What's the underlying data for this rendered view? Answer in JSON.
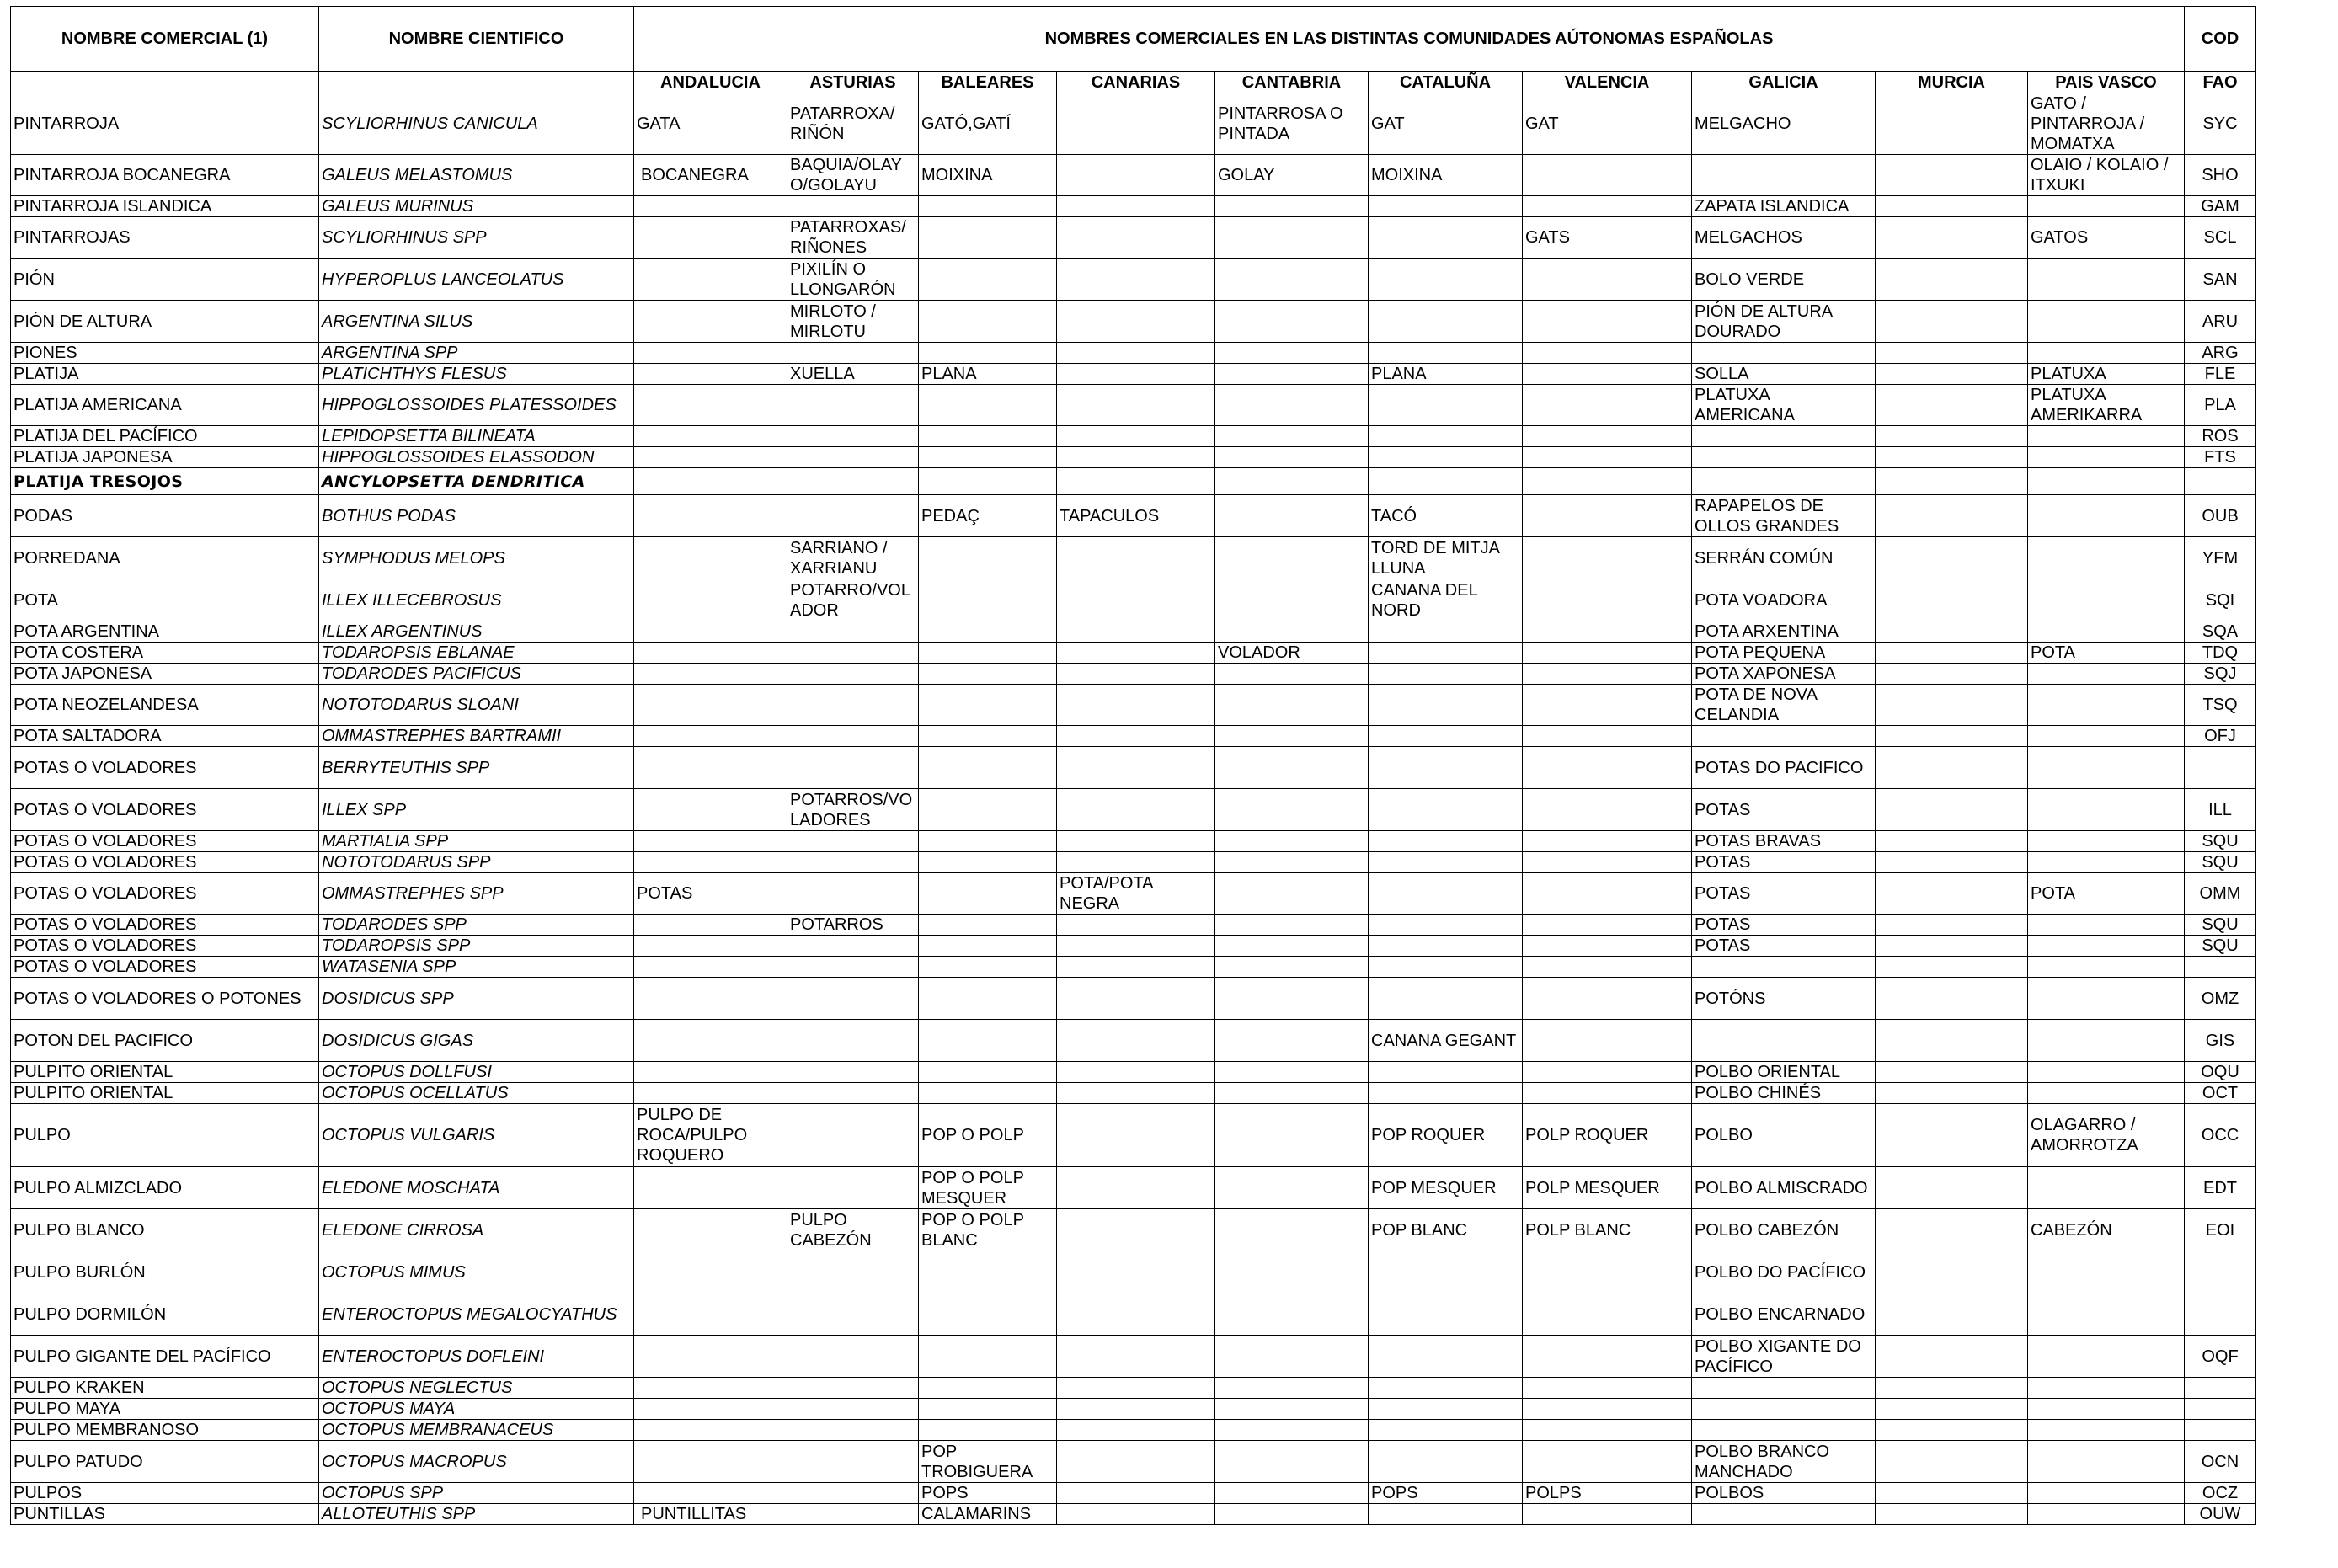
{
  "header": {
    "commercial_name": "NOMBRE COMERCIAL (1)",
    "scientific_name": "NOMBRE CIENTIFICO",
    "regions_title": "NOMBRES COMERCIALES EN LAS DISTINTAS COMUNIDADES AÚTONOMAS ESPAÑOLAS",
    "cod": "COD",
    "fao": "FAO",
    "regions": [
      "ANDALUCIA",
      "ASTURIAS",
      "BALEARES",
      "CANARIAS",
      "CANTABRIA",
      "CATALUÑA",
      "VALENCIA",
      "GALICIA",
      "MURCIA",
      "PAIS VASCO"
    ]
  },
  "rows": [
    {
      "common": "PINTARROJA",
      "scientific": "SCYLIORHINUS CANICULA",
      "regions": [
        "GATA",
        "PATARROXA/ RIÑÓN",
        "GATÓ,GATÍ",
        "",
        "PINTARROSA O PINTADA",
        "GAT",
        "GAT",
        "MELGACHO",
        "",
        "GATO / PINTARROJA / MOMATXA"
      ],
      "fao": "SYC"
    },
    {
      "common": "PINTARROJA BOCANEGRA",
      "scientific": "GALEUS MELASTOMUS",
      "regions": [
        "BOCANEGRA",
        "BAQUIA/OLAY O/GOLAYU",
        "MOIXINA",
        "",
        "GOLAY",
        "MOIXINA",
        "",
        "",
        "",
        "OLAIO / KOLAIO / ITXUKI"
      ],
      "fao": "SHO"
    },
    {
      "common": "PINTARROJA ISLANDICA",
      "scientific": "GALEUS MURINUS",
      "regions": [
        "",
        "",
        "",
        "",
        "",
        "",
        "",
        "ZAPATA ISLANDICA",
        "",
        ""
      ],
      "fao": "GAM"
    },
    {
      "common": "PINTARROJAS",
      "scientific": "SCYLIORHINUS SPP",
      "regions": [
        "",
        "PATARROXAS/ RIÑONES",
        "",
        "",
        "",
        "",
        "GATS",
        "MELGACHOS",
        "",
        "GATOS"
      ],
      "fao": "SCL"
    },
    {
      "common": "PIÓN",
      "scientific": "HYPEROPLUS LANCEOLATUS",
      "regions": [
        "",
        "PIXILÍN O LLONGARÓN",
        "",
        "",
        "",
        "",
        "",
        "BOLO VERDE",
        "",
        ""
      ],
      "fao": "SAN"
    },
    {
      "common": "PIÓN DE ALTURA",
      "scientific": "ARGENTINA SILUS",
      "regions": [
        "",
        "MIRLOTO / MIRLOTU",
        "",
        "",
        "",
        "",
        "",
        "PIÓN DE ALTURA DOURADO",
        "",
        ""
      ],
      "fao": "ARU"
    },
    {
      "common": "PIONES",
      "scientific": "ARGENTINA SPP",
      "regions": [
        "",
        "",
        "",
        "",
        "",
        "",
        "",
        "",
        "",
        ""
      ],
      "fao": "ARG"
    },
    {
      "common": "PLATIJA",
      "scientific": "PLATICHTHYS FLESUS",
      "regions": [
        "",
        "XUELLA",
        "PLANA",
        "",
        "",
        "PLANA",
        "",
        "SOLLA",
        "",
        "PLATUXA"
      ],
      "fao": "FLE"
    },
    {
      "common": "PLATIJA AMERICANA",
      "scientific": "HIPPOGLOSSOIDES PLATESSOIDES",
      "regions": [
        "",
        "",
        "",
        "",
        "",
        "",
        "",
        "PLATUXA AMERICANA",
        "",
        "PLATUXA AMERIKARRA"
      ],
      "fao": "PLA"
    },
    {
      "common": "PLATIJA DEL PACÍFICO",
      "scientific": "LEPIDOPSETTA BILINEATA",
      "regions": [
        "",
        "",
        "",
        "",
        "",
        "",
        "",
        "",
        "",
        ""
      ],
      "fao": "ROS"
    },
    {
      "common": "PLATIJA JAPONESA",
      "scientific": "HIPPOGLOSSOIDES ELASSODON",
      "regions": [
        "",
        "",
        "",
        "",
        "",
        "",
        "",
        "",
        "",
        ""
      ],
      "fao": "FTS"
    },
    {
      "common": "PLATIJA TRESOJOS",
      "scientific": "ANCYLOPSETTA DENDRITICA",
      "regions": [
        "",
        "",
        "",
        "",
        "",
        "",
        "",
        "",
        "",
        ""
      ],
      "fao": ""
    },
    {
      "common": "PODAS",
      "scientific": "BOTHUS PODAS",
      "regions": [
        "",
        "",
        "PEDAÇ",
        "TAPACULOS",
        "",
        "TACÓ",
        "",
        "RAPAPELOS DE OLLOS GRANDES",
        "",
        ""
      ],
      "fao": "OUB"
    },
    {
      "common": "PORREDANA",
      "scientific": "SYMPHODUS MELOPS",
      "regions": [
        "",
        "SARRIANO / XARRIANU",
        "",
        "",
        "",
        "TORD DE MITJA LLUNA",
        "",
        "SERRÁN COMÚN",
        "",
        ""
      ],
      "fao": "YFM"
    },
    {
      "common": "POTA",
      "scientific": "ILLEX ILLECEBROSUS",
      "regions": [
        "",
        "POTARRO/VOL ADOR",
        "",
        "",
        "",
        "CANANA DEL NORD",
        "",
        "POTA VOADORA",
        "",
        ""
      ],
      "fao": "SQI"
    },
    {
      "common": "POTA ARGENTINA",
      "scientific": "ILLEX ARGENTINUS",
      "regions": [
        "",
        "",
        "",
        "",
        "",
        "",
        "",
        "POTA ARXENTINA",
        "",
        ""
      ],
      "fao": "SQA"
    },
    {
      "common": "POTA COSTERA",
      "scientific": "TODAROPSIS EBLANAE",
      "regions": [
        "",
        "",
        "",
        "",
        "VOLADOR",
        "",
        "",
        "POTA PEQUENA",
        "",
        "POTA"
      ],
      "fao": "TDQ"
    },
    {
      "common": "POTA JAPONESA",
      "scientific": "TODARODES PACIFICUS",
      "regions": [
        "",
        "",
        "",
        "",
        "",
        "",
        "",
        "POTA XAPONESA",
        "",
        ""
      ],
      "fao": "SQJ"
    },
    {
      "common": "POTA NEOZELANDESA",
      "scientific": "NOTOTODARUS SLOANI",
      "regions": [
        "",
        "",
        "",
        "",
        "",
        "",
        "",
        "POTA DE NOVA CELANDIA",
        "",
        ""
      ],
      "fao": "TSQ"
    },
    {
      "common": "POTA SALTADORA",
      "scientific": "OMMASTREPHES BARTRAMII",
      "regions": [
        "",
        "",
        "",
        "",
        "",
        "",
        "",
        "",
        "",
        ""
      ],
      "fao": "OFJ"
    },
    {
      "common": "POTAS O VOLADORES",
      "scientific": "BERRYTEUTHIS SPP",
      "regions": [
        "",
        "",
        "",
        "",
        "",
        "",
        "",
        "POTAS DO PACIFICO",
        "",
        ""
      ],
      "fao": ""
    },
    {
      "common": "POTAS O VOLADORES",
      "scientific": "ILLEX SPP",
      "regions": [
        "",
        "POTARROS/VO LADORES",
        "",
        "",
        "",
        "",
        "",
        "POTAS",
        "",
        ""
      ],
      "fao": "ILL"
    },
    {
      "common": "POTAS O VOLADORES",
      "scientific": "MARTIALIA SPP",
      "regions": [
        "",
        "",
        "",
        "",
        "",
        "",
        "",
        "POTAS BRAVAS",
        "",
        ""
      ],
      "fao": "SQU"
    },
    {
      "common": "POTAS O VOLADORES",
      "scientific": "NOTOTODARUS SPP",
      "regions": [
        "",
        "",
        "",
        "",
        "",
        "",
        "",
        "POTAS",
        "",
        ""
      ],
      "fao": "SQU"
    },
    {
      "common": "POTAS O VOLADORES",
      "scientific": "OMMASTREPHES SPP",
      "regions": [
        "POTAS",
        "",
        "",
        "POTA/POTA NEGRA",
        "",
        "",
        "",
        "POTAS",
        "",
        "POTA"
      ],
      "fao": "OMM"
    },
    {
      "common": "POTAS O VOLADORES",
      "scientific": "TODARODES SPP",
      "regions": [
        "",
        "POTARROS",
        "",
        "",
        "",
        "",
        "",
        "POTAS",
        "",
        ""
      ],
      "fao": "SQU"
    },
    {
      "common": "POTAS O VOLADORES",
      "scientific": "TODAROPSIS SPP",
      "regions": [
        "",
        "",
        "",
        "",
        "",
        "",
        "",
        "POTAS",
        "",
        ""
      ],
      "fao": "SQU"
    },
    {
      "common": "POTAS O VOLADORES",
      "scientific": "WATASENIA SPP",
      "regions": [
        "",
        "",
        "",
        "",
        "",
        "",
        "",
        "",
        "",
        ""
      ],
      "fao": ""
    },
    {
      "common": "POTAS O VOLADORES O POTONES",
      "scientific": "DOSIDICUS SPP",
      "regions": [
        "",
        "",
        "",
        "",
        "",
        "",
        "",
        "POTÓNS",
        "",
        ""
      ],
      "fao": "OMZ"
    },
    {
      "common": "POTON DEL PACIFICO",
      "scientific": "DOSIDICUS GIGAS",
      "regions": [
        "",
        "",
        "",
        "",
        "",
        "CANANA GEGANT",
        "",
        "",
        "",
        ""
      ],
      "fao": "GIS"
    },
    {
      "common": "PULPITO ORIENTAL",
      "scientific": "OCTOPUS DOLLFUSI",
      "regions": [
        "",
        "",
        "",
        "",
        "",
        "",
        "",
        "POLBO ORIENTAL",
        "",
        ""
      ],
      "fao": "OQU"
    },
    {
      "common": "PULPITO ORIENTAL",
      "scientific": "OCTOPUS OCELLATUS",
      "regions": [
        "",
        "",
        "",
        "",
        "",
        "",
        "",
        "POLBO CHINÉS",
        "",
        ""
      ],
      "fao": "OCT"
    },
    {
      "common": "PULPO",
      "scientific": "OCTOPUS VULGARIS",
      "regions": [
        "PULPO DE ROCA/PULPO ROQUERO",
        "",
        "POP O POLP",
        "",
        "",
        "POP ROQUER",
        "POLP ROQUER",
        "POLBO",
        "",
        "OLAGARRO / AMORROTZA"
      ],
      "fao": "OCC"
    },
    {
      "common": "PULPO ALMIZCLADO",
      "scientific": "ELEDONE MOSCHATA",
      "regions": [
        "",
        "",
        "POP O POLP MESQUER",
        "",
        "",
        "POP MESQUER",
        "POLP MESQUER",
        "POLBO ALMISCRADO",
        "",
        ""
      ],
      "fao": "EDT"
    },
    {
      "common": "PULPO BLANCO",
      "scientific": "ELEDONE CIRROSA",
      "regions": [
        "",
        "PULPO CABEZÓN",
        "POP O POLP BLANC",
        "",
        "",
        "POP BLANC",
        "POLP BLANC",
        "POLBO CABEZÓN",
        "",
        "CABEZÓN"
      ],
      "fao": "EOI"
    },
    {
      "common": "PULPO BURLÓN",
      "scientific": "OCTOPUS MIMUS",
      "regions": [
        "",
        "",
        "",
        "",
        "",
        "",
        "",
        "POLBO DO PACÍFICO",
        "",
        ""
      ],
      "fao": ""
    },
    {
      "common": "PULPO DORMILÓN",
      "scientific": "ENTEROCTOPUS MEGALOCYATHUS",
      "regions": [
        "",
        "",
        "",
        "",
        "",
        "",
        "",
        "POLBO ENCARNADO",
        "",
        ""
      ],
      "fao": ""
    },
    {
      "common": "PULPO GIGANTE DEL PACÍFICO",
      "scientific": "ENTEROCTOPUS DOFLEINI",
      "regions": [
        "",
        "",
        "",
        "",
        "",
        "",
        "",
        "POLBO XIGANTE DO PACÍFICO",
        "",
        ""
      ],
      "fao": "OQF"
    },
    {
      "common": "PULPO KRAKEN",
      "scientific": "OCTOPUS NEGLECTUS",
      "regions": [
        "",
        "",
        "",
        "",
        "",
        "",
        "",
        "",
        "",
        ""
      ],
      "fao": ""
    },
    {
      "common": "PULPO MAYA",
      "scientific": "OCTOPUS MAYA",
      "regions": [
        "",
        "",
        "",
        "",
        "",
        "",
        "",
        "",
        "",
        ""
      ],
      "fao": ""
    },
    {
      "common": "PULPO MEMBRANOSO",
      "scientific": "OCTOPUS MEMBRANACEUS",
      "regions": [
        "",
        "",
        "",
        "",
        "",
        "",
        "",
        "",
        "",
        ""
      ],
      "fao": ""
    },
    {
      "common": "PULPO PATUDO",
      "scientific": "OCTOPUS MACROPUS",
      "regions": [
        "",
        "",
        "POP TROBIGUERA",
        "",
        "",
        "",
        "",
        "POLBO BRANCO MANCHADO",
        "",
        ""
      ],
      "fao": "OCN"
    },
    {
      "common": "PULPOS",
      "scientific": "OCTOPUS SPP",
      "regions": [
        "",
        "",
        "POPS",
        "",
        "",
        "POPS",
        "POLPS",
        "POLBOS",
        "",
        ""
      ],
      "fao": "OCZ"
    },
    {
      "common": "PUNTILLAS",
      "scientific": "ALLOTEUTHIS SPP",
      "regions": [
        "PUNTILLITAS",
        "",
        "CALAMARINS",
        "",
        "",
        "",
        "",
        "",
        "",
        ""
      ],
      "fao": "OUW"
    }
  ]
}
